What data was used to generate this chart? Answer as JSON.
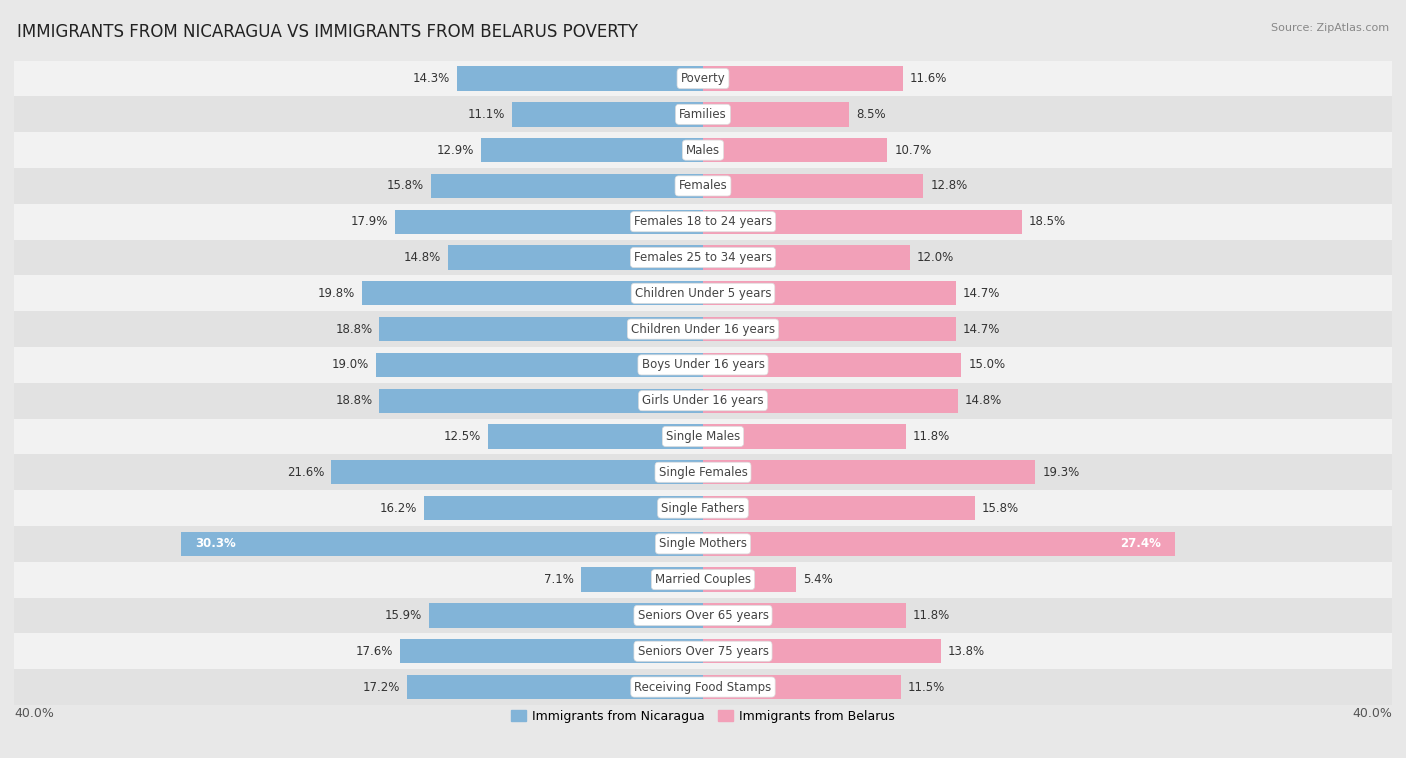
{
  "title": "IMMIGRANTS FROM NICARAGUA VS IMMIGRANTS FROM BELARUS POVERTY",
  "source": "Source: ZipAtlas.com",
  "categories": [
    "Poverty",
    "Families",
    "Males",
    "Females",
    "Females 18 to 24 years",
    "Females 25 to 34 years",
    "Children Under 5 years",
    "Children Under 16 years",
    "Boys Under 16 years",
    "Girls Under 16 years",
    "Single Males",
    "Single Females",
    "Single Fathers",
    "Single Mothers",
    "Married Couples",
    "Seniors Over 65 years",
    "Seniors Over 75 years",
    "Receiving Food Stamps"
  ],
  "nicaragua_values": [
    14.3,
    11.1,
    12.9,
    15.8,
    17.9,
    14.8,
    19.8,
    18.8,
    19.0,
    18.8,
    12.5,
    21.6,
    16.2,
    30.3,
    7.1,
    15.9,
    17.6,
    17.2
  ],
  "belarus_values": [
    11.6,
    8.5,
    10.7,
    12.8,
    18.5,
    12.0,
    14.7,
    14.7,
    15.0,
    14.8,
    11.8,
    19.3,
    15.8,
    27.4,
    5.4,
    11.8,
    13.8,
    11.5
  ],
  "nicaragua_color": "#82b4d8",
  "belarus_color": "#f2a0b8",
  "max_value": 40.0,
  "bg_color": "#e8e8e8",
  "row_bg_even": "#f2f2f2",
  "row_bg_odd": "#e2e2e2",
  "title_fontsize": 12,
  "label_fontsize": 8.5,
  "value_fontsize": 8.5,
  "legend_fontsize": 9,
  "axis_label_fontsize": 9,
  "inside_label_threshold": 24.0
}
